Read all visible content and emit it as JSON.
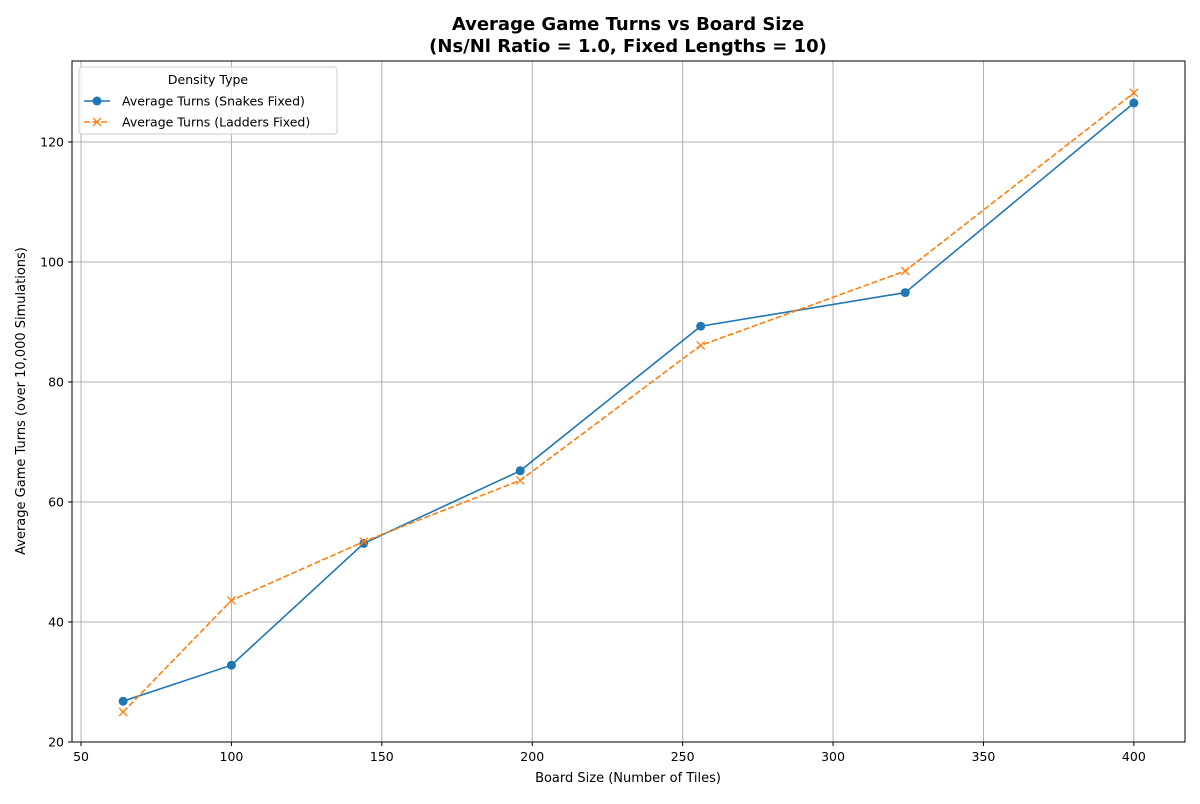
{
  "chart_data": {
    "type": "line",
    "title_line1": "Average Game Turns vs Board Size",
    "title_line2": "(Ns/Nl Ratio = 1.0, Fixed Lengths = 10)",
    "xlabel": "Board Size (Number of Tiles)",
    "ylabel": "Average Game Turns (over 10,000 Simulations)",
    "xlim": [
      47,
      417
    ],
    "ylim": [
      20,
      133.5
    ],
    "xticks": [
      50,
      100,
      150,
      200,
      250,
      300,
      350,
      400
    ],
    "yticks": [
      20,
      40,
      60,
      80,
      100,
      120
    ],
    "grid": true,
    "legend": {
      "title": "Density Type",
      "placement": "top-left"
    },
    "x": [
      64,
      100,
      144,
      196,
      256,
      324,
      400
    ],
    "series": [
      {
        "name": "Average Turns (Snakes Fixed)",
        "values": [
          26.8,
          32.8,
          53.1,
          65.2,
          89.3,
          94.9,
          126.5
        ],
        "color": "#1f77b4",
        "marker": "circle",
        "linestyle": "solid"
      },
      {
        "name": "Average Turns (Ladders Fixed)",
        "values": [
          25.0,
          43.6,
          53.4,
          63.6,
          86.1,
          98.5,
          128.2
        ],
        "color": "#ff7f0e",
        "marker": "x",
        "linestyle": "dashed"
      }
    ]
  }
}
